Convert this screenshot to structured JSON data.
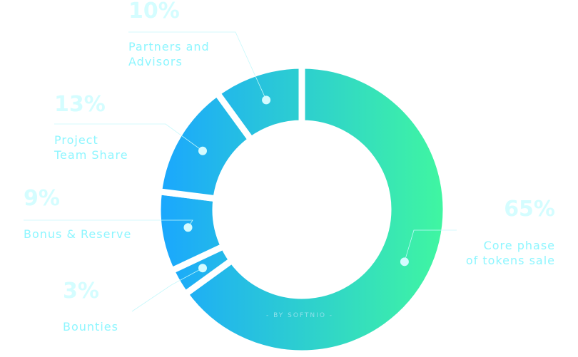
{
  "chart_data": {
    "type": "pie",
    "donut": true,
    "slices": [
      {
        "label": "Core phase\nof tokens sale",
        "value": 65,
        "value_label": "65%"
      },
      {
        "label": "Bounties",
        "value": 3,
        "value_label": "3%"
      },
      {
        "label": "Bonus & Reserve",
        "value": 9,
        "value_label": "9%"
      },
      {
        "label": "Project\nTeam Share",
        "value": 13,
        "value_label": "13%"
      },
      {
        "label": "Partners and\nAdvisors",
        "value": 10,
        "value_label": "10%"
      }
    ],
    "gradient": {
      "from": "#1aa6ff",
      "to": "#40f7a0"
    },
    "label_color": "#8ef6ff",
    "percent_color": "#d4fdff"
  },
  "credit": "- BY SOFTNIO -"
}
